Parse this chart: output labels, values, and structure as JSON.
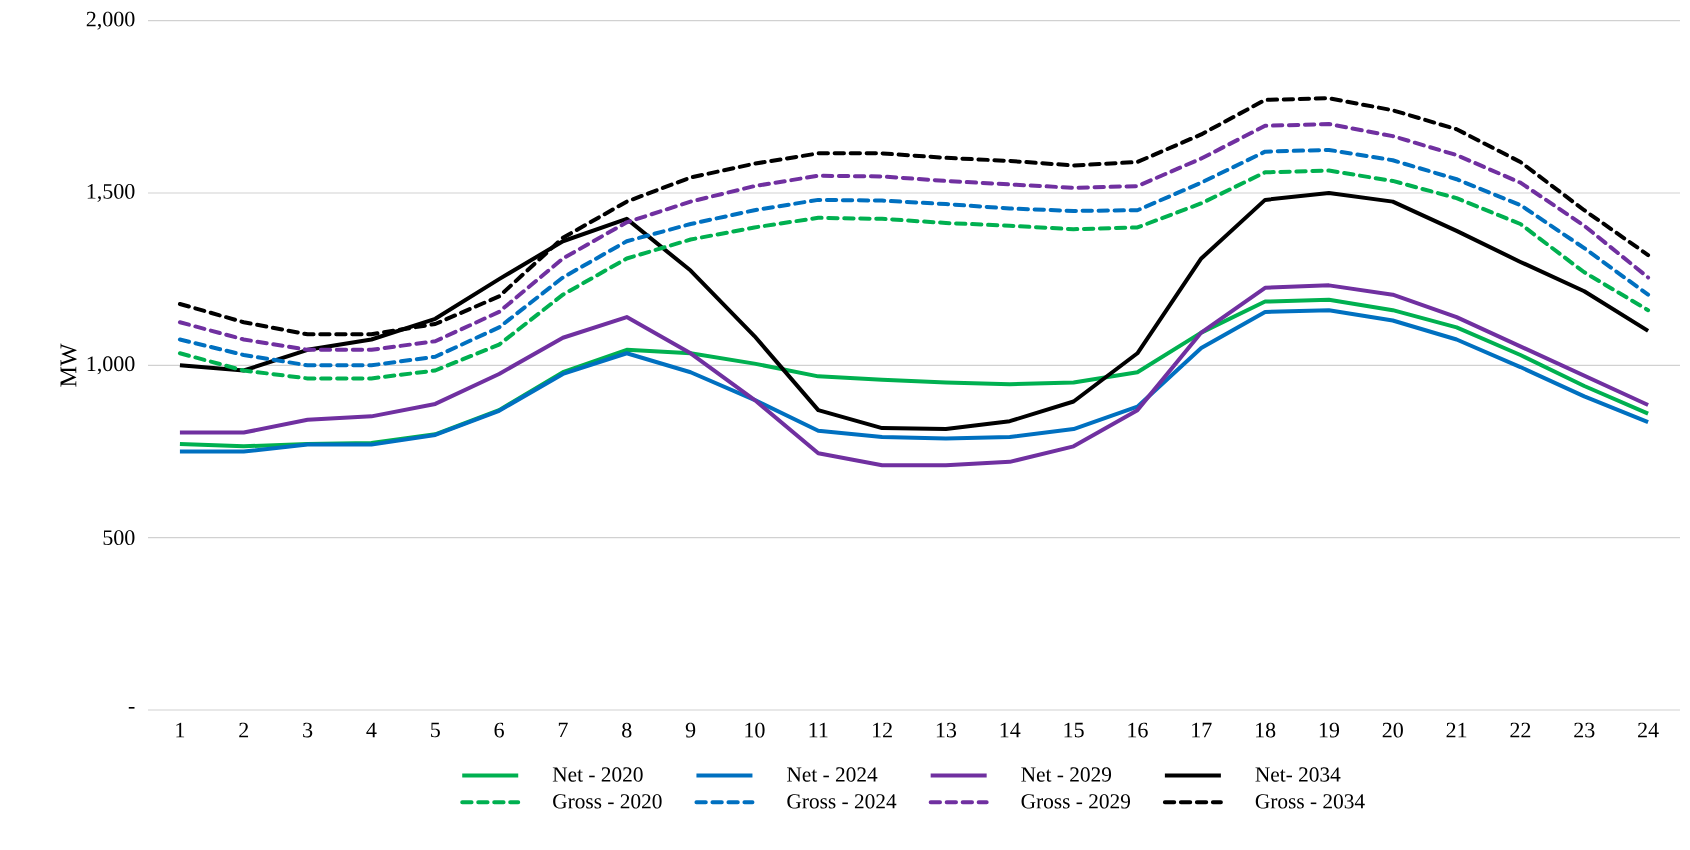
{
  "chart_data": {
    "type": "line",
    "ylabel": "MW",
    "categories": [
      "1",
      "2",
      "3",
      "4",
      "5",
      "6",
      "7",
      "8",
      "9",
      "10",
      "11",
      "12",
      "13",
      "14",
      "15",
      "16",
      "17",
      "18",
      "19",
      "20",
      "21",
      "22",
      "23",
      "24"
    ],
    "ylim": [
      0,
      2000
    ],
    "yticks": [
      {
        "value": 0,
        "label": "-"
      },
      500,
      {
        "value": 1000,
        "label": "1,000"
      },
      {
        "value": 1500,
        "label": "1,500"
      },
      {
        "value": 2000,
        "label": "2,000"
      }
    ],
    "grid": "y",
    "legend": "bottom",
    "marker": "none",
    "series": [
      {
        "name": "Net - 2020",
        "color": "#00b050",
        "line_style": "solid",
        "values": [
          772,
          765,
          772,
          775,
          800,
          870,
          980,
          1045,
          1035,
          1005,
          968,
          958,
          950,
          945,
          950,
          980,
          1095,
          1185,
          1190,
          1160,
          1110,
          1030,
          940,
          860
        ]
      },
      {
        "name": "Net - 2024",
        "color": "#0070c0",
        "line_style": "solid",
        "values": [
          750,
          750,
          770,
          770,
          798,
          868,
          975,
          1035,
          980,
          900,
          810,
          792,
          788,
          792,
          815,
          880,
          1050,
          1155,
          1160,
          1130,
          1075,
          995,
          910,
          835
        ]
      },
      {
        "name": "Net - 2029",
        "color": "#7030a0",
        "line_style": "solid",
        "values": [
          805,
          805,
          842,
          852,
          888,
          975,
          1080,
          1140,
          1035,
          900,
          745,
          710,
          710,
          720,
          765,
          870,
          1095,
          1225,
          1232,
          1205,
          1140,
          1055,
          970,
          885
        ]
      },
      {
        "name": "Net- 2034",
        "color": "#000000",
        "line_style": "solid",
        "values": [
          1000,
          985,
          1045,
          1075,
          1135,
          1250,
          1360,
          1425,
          1275,
          1085,
          870,
          818,
          815,
          838,
          895,
          1035,
          1310,
          1480,
          1500,
          1475,
          1390,
          1300,
          1215,
          1100
        ]
      },
      {
        "name": "Gross - 2020",
        "color": "#00b050",
        "line_style": "dashed",
        "values": [
          1035,
          985,
          962,
          962,
          985,
          1060,
          1205,
          1310,
          1365,
          1400,
          1428,
          1425,
          1413,
          1405,
          1395,
          1400,
          1470,
          1560,
          1565,
          1535,
          1485,
          1410,
          1270,
          1160
        ]
      },
      {
        "name": "Gross - 2024",
        "color": "#0070c0",
        "line_style": "dashed",
        "values": [
          1075,
          1030,
          1000,
          1000,
          1025,
          1110,
          1255,
          1360,
          1410,
          1450,
          1480,
          1478,
          1468,
          1455,
          1448,
          1450,
          1530,
          1620,
          1625,
          1595,
          1540,
          1465,
          1340,
          1205
        ]
      },
      {
        "name": "Gross - 2029",
        "color": "#7030a0",
        "line_style": "dashed",
        "values": [
          1125,
          1075,
          1045,
          1045,
          1070,
          1155,
          1310,
          1415,
          1475,
          1520,
          1550,
          1548,
          1535,
          1525,
          1515,
          1520,
          1600,
          1695,
          1700,
          1665,
          1610,
          1530,
          1405,
          1255
        ]
      },
      {
        "name": "Gross - 2034",
        "color": "#000000",
        "line_style": "dashed",
        "values": [
          1178,
          1125,
          1090,
          1090,
          1120,
          1200,
          1370,
          1475,
          1545,
          1585,
          1615,
          1615,
          1602,
          1593,
          1580,
          1590,
          1670,
          1770,
          1775,
          1740,
          1685,
          1590,
          1450,
          1320
        ]
      }
    ]
  }
}
